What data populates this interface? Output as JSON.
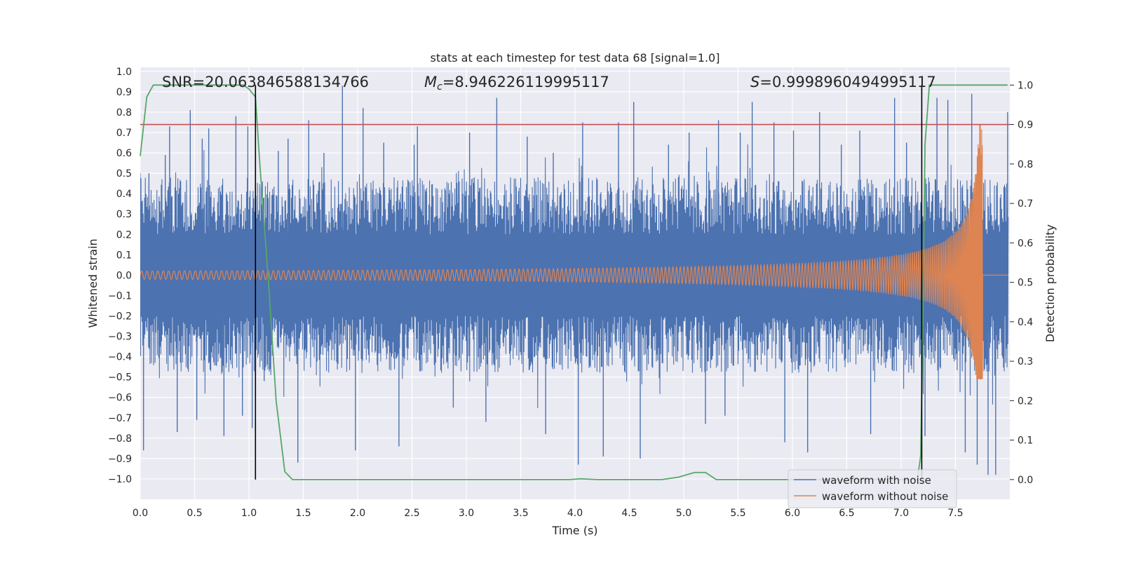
{
  "chart_data": {
    "type": "line",
    "title": "stats at each timestep for test data 68 [signal=1.0]",
    "xlabel": "Time (s)",
    "ylabel_left": "Whitened strain",
    "ylabel_right": "Detection probability",
    "xlim": [
      0.0,
      8.0
    ],
    "ylim_left": [
      -1.1,
      1.02
    ],
    "ylim_right": [
      -0.05,
      1.045
    ],
    "x_ticks": [
      "0.0",
      "0.5",
      "1.0",
      "1.5",
      "2.0",
      "2.5",
      "3.0",
      "3.5",
      "4.0",
      "4.5",
      "5.0",
      "5.5",
      "6.0",
      "6.5",
      "7.0",
      "7.5"
    ],
    "y_ticks_left": [
      "1.0",
      "0.9",
      "0.8",
      "0.7",
      "0.6",
      "0.5",
      "0.4",
      "0.3",
      "0.2",
      "0.1",
      "0.0",
      "-0.1",
      "-0.2",
      "-0.3",
      "-0.4",
      "-0.5",
      "-0.6",
      "-0.7",
      "-0.8",
      "-0.9",
      "-1.0"
    ],
    "y_ticks_right": [
      "1.0",
      "0.9",
      "0.8",
      "0.7",
      "0.6",
      "0.5",
      "0.4",
      "0.3",
      "0.2",
      "0.1",
      "0.0"
    ],
    "annotations": {
      "snr": "SNR=20.063846588134766",
      "mc_symbol": "M",
      "mc_sub": "c",
      "mc_value": "=8.946226119995117",
      "s_symbol": "S",
      "s_value": "=0.9998960494995117"
    },
    "threshold": {
      "value_right": 0.9,
      "color": "#c44e52"
    },
    "vertical_lines": [
      1.06,
      7.19
    ],
    "series": [
      {
        "name": "waveform with noise",
        "color": "#4c72b0",
        "axis": "left",
        "description": "whitened noisy strain, envelope roughly ±0.45 with spikes up to ±0.9",
        "spikes": [
          [
            0.03,
            -0.86
          ],
          [
            0.08,
            0.5
          ],
          [
            0.23,
            0.59
          ],
          [
            0.27,
            0.73
          ],
          [
            0.34,
            -0.77
          ],
          [
            0.46,
            0.81
          ],
          [
            0.52,
            -0.71
          ],
          [
            0.57,
            0.67
          ],
          [
            0.63,
            0.72
          ],
          [
            0.77,
            -0.79
          ],
          [
            0.88,
            0.78
          ],
          [
            0.94,
            -0.69
          ],
          [
            0.99,
            0.73
          ],
          [
            1.03,
            -0.75
          ],
          [
            1.14,
            -0.52
          ],
          [
            1.27,
            0.61
          ],
          [
            1.36,
            0.67
          ],
          [
            1.45,
            -0.92
          ],
          [
            1.55,
            0.76
          ],
          [
            1.69,
            0.6
          ],
          [
            1.86,
            0.93
          ],
          [
            1.98,
            -0.86
          ],
          [
            2.05,
            0.82
          ],
          [
            2.24,
            0.65
          ],
          [
            2.38,
            -0.84
          ],
          [
            2.52,
            0.64
          ],
          [
            2.55,
            0.73
          ],
          [
            2.88,
            -0.65
          ],
          [
            3.03,
            0.7
          ],
          [
            3.18,
            -0.72
          ],
          [
            3.28,
            0.87
          ],
          [
            3.56,
            0.68
          ],
          [
            3.73,
            -0.78
          ],
          [
            3.8,
            0.6
          ],
          [
            4.03,
            -0.93
          ],
          [
            4.07,
            0.75
          ],
          [
            4.26,
            -0.89
          ],
          [
            4.4,
            0.75
          ],
          [
            4.54,
            0.85
          ],
          [
            4.6,
            -0.9
          ],
          [
            4.86,
            0.64
          ],
          [
            5.05,
            0.7
          ],
          [
            5.2,
            -0.73
          ],
          [
            5.32,
            0.76
          ],
          [
            5.38,
            -0.69
          ],
          [
            5.52,
            0.7
          ],
          [
            5.63,
            0.85
          ],
          [
            5.83,
            0.75
          ],
          [
            5.93,
            -0.82
          ],
          [
            6.01,
            0.71
          ],
          [
            6.14,
            -0.87
          ],
          [
            6.25,
            0.8
          ],
          [
            6.45,
            0.64
          ],
          [
            6.62,
            0.71
          ],
          [
            6.72,
            -0.78
          ],
          [
            6.94,
            0.87
          ],
          [
            7.05,
            0.65
          ],
          [
            7.22,
            -0.79
          ],
          [
            7.33,
            0.87
          ],
          [
            7.43,
            0.86
          ],
          [
            7.59,
            -0.87
          ],
          [
            7.65,
            0.89
          ],
          [
            7.7,
            -0.93
          ],
          [
            7.8,
            -0.98
          ],
          [
            7.87,
            -0.98
          ],
          [
            7.98,
            0.8
          ]
        ]
      },
      {
        "name": "waveform without noise",
        "color": "#dd8452",
        "axis": "left",
        "description": "chirp signal: amplitude ~0.02 rising to ~0.75 at merger (t≈7.75 s), then flat at 0",
        "merger_time": 7.75,
        "start_amplitude": 0.02,
        "peak_amplitude": 0.75,
        "min_amplitude": -0.51,
        "start_frequency_hz": 20
      },
      {
        "name": "detection probability",
        "color": "#55a868",
        "axis": "right",
        "points": [
          [
            0.0,
            0.82
          ],
          [
            0.06,
            0.97
          ],
          [
            0.12,
            1.0
          ],
          [
            0.3,
            1.0
          ],
          [
            0.6,
            1.0
          ],
          [
            0.95,
            1.0
          ],
          [
            1.0,
            0.99
          ],
          [
            1.06,
            0.97
          ],
          [
            1.1,
            0.8
          ],
          [
            1.18,
            0.5
          ],
          [
            1.25,
            0.2
          ],
          [
            1.33,
            0.02
          ],
          [
            1.4,
            0.0
          ],
          [
            2.0,
            0.0
          ],
          [
            3.0,
            0.0
          ],
          [
            3.95,
            0.0
          ],
          [
            4.05,
            0.002
          ],
          [
            4.2,
            0.0
          ],
          [
            4.8,
            0.0
          ],
          [
            4.95,
            0.006
          ],
          [
            5.1,
            0.018
          ],
          [
            5.2,
            0.018
          ],
          [
            5.3,
            0.0
          ],
          [
            5.5,
            0.0
          ],
          [
            6.5,
            0.0
          ],
          [
            7.15,
            0.0
          ],
          [
            7.18,
            0.06
          ],
          [
            7.2,
            0.4
          ],
          [
            7.22,
            0.85
          ],
          [
            7.26,
            1.0
          ],
          [
            7.5,
            1.0
          ],
          [
            7.98,
            1.0
          ]
        ]
      }
    ],
    "legend_position": "lower-right",
    "grid": true,
    "background": "#eaeaf2"
  }
}
